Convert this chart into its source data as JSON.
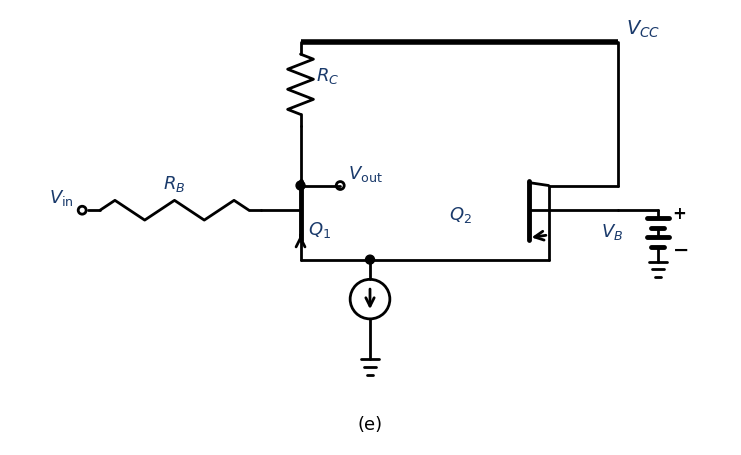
{
  "bg_color": "#ffffff",
  "line_color": "#000000",
  "label_color": "#1a3a6b",
  "fig_width": 7.41,
  "fig_height": 4.55,
  "caption": "(e)",
  "vcc_label": "$V_{CC}$",
  "rc_label": "$R_C$",
  "rb_label": "$R_B$",
  "vin_label": "$V_{\\mathrm{in}}$",
  "vout_label": "$V_{\\mathrm{out}}$",
  "q1_label": "$Q_1$",
  "q2_label": "$Q_2$",
  "vb_label": "$V_B$"
}
